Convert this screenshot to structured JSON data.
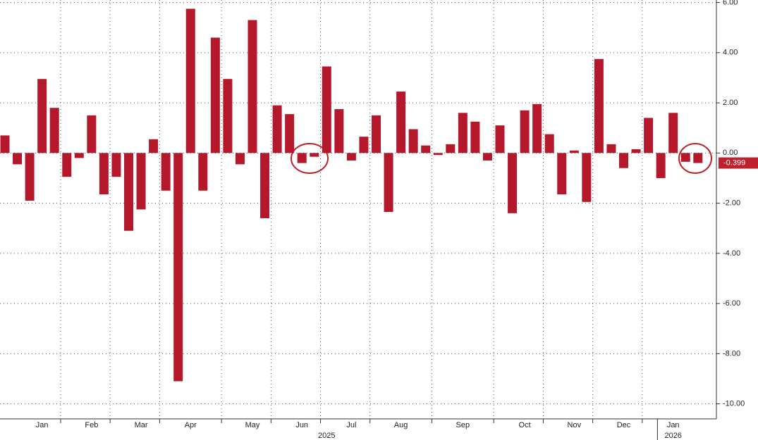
{
  "chart_data": {
    "type": "bar",
    "color": "#b5172b",
    "values": [
      0.7,
      -0.45,
      -1.9,
      2.95,
      1.8,
      -0.95,
      -0.2,
      1.5,
      -1.65,
      -0.95,
      -3.1,
      -2.25,
      0.55,
      -1.5,
      -9.1,
      5.75,
      -1.5,
      4.6,
      2.95,
      -0.45,
      5.3,
      -2.6,
      1.9,
      1.55,
      -0.4,
      -0.15,
      3.45,
      1.75,
      -0.3,
      0.65,
      1.5,
      -2.35,
      2.45,
      0.95,
      0.3,
      -0.08,
      0.35,
      1.6,
      1.25,
      -0.3,
      1.1,
      -2.4,
      1.7,
      1.95,
      0.75,
      -1.65,
      0.1,
      -1.95,
      3.75,
      0.35,
      -0.6,
      0.15,
      1.4,
      -1.0,
      1.6,
      -0.35,
      -0.399
    ],
    "categories": [
      null,
      null,
      null,
      "Jan",
      null,
      null,
      null,
      "Feb",
      null,
      null,
      null,
      "Mar",
      null,
      null,
      null,
      "Apr",
      null,
      null,
      null,
      null,
      "May",
      null,
      null,
      null,
      "Jun",
      null,
      null,
      null,
      "Jul",
      null,
      null,
      null,
      "Aug",
      null,
      null,
      null,
      null,
      "Sep",
      null,
      null,
      null,
      null,
      "Oct",
      null,
      null,
      null,
      "Nov",
      null,
      null,
      null,
      "Dec",
      null,
      null,
      null,
      "Jan",
      null,
      null
    ],
    "years": [
      "2025",
      "2026"
    ],
    "last_label": "-0.399",
    "ylim": [
      -10.6,
      6.1
    ],
    "yticks": [
      {
        "value": 6,
        "label": "6.00"
      },
      {
        "value": 4,
        "label": "4.00"
      },
      {
        "value": 2,
        "label": "2.00"
      },
      {
        "value": 0,
        "label": "0.00"
      },
      {
        "value": -2,
        "label": "-2.00"
      },
      {
        "value": -4,
        "label": "-4.00"
      },
      {
        "value": -6,
        "label": "-6.00"
      },
      {
        "value": -8,
        "label": "-8.00"
      },
      {
        "value": -10,
        "label": "-10.00"
      }
    ],
    "grid": true
  }
}
